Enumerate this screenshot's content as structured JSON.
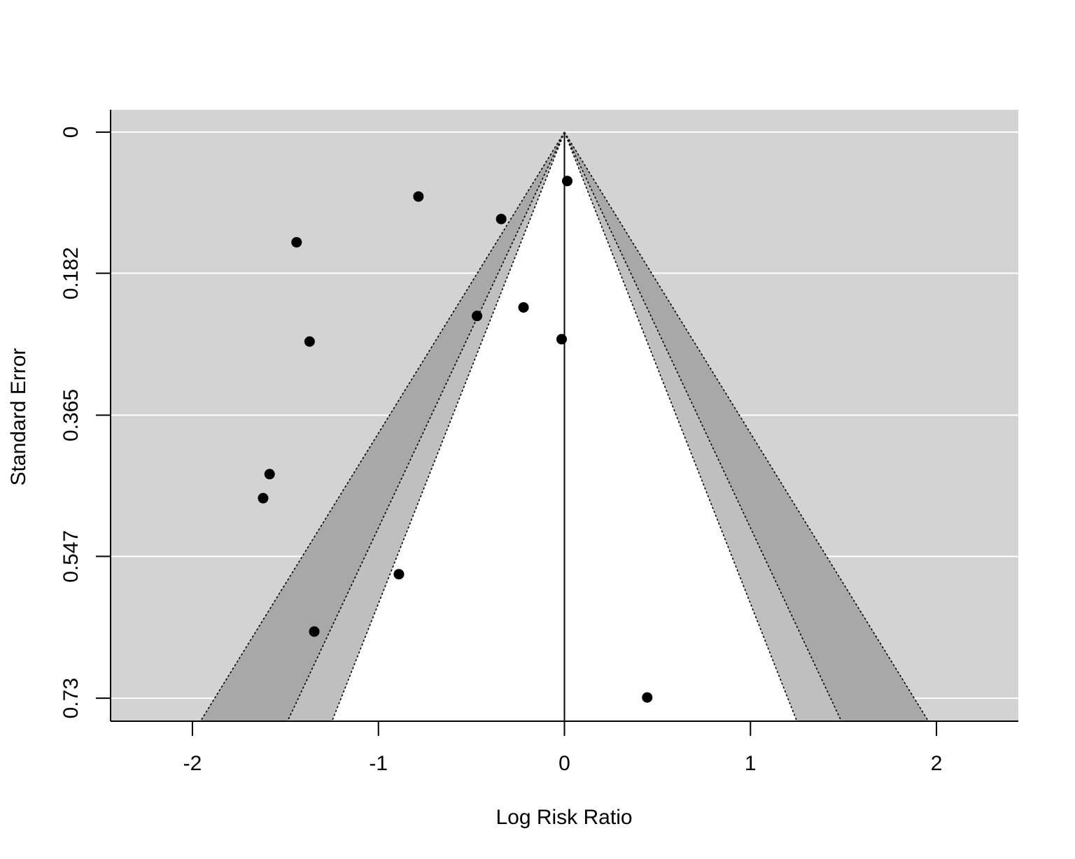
{
  "chart_data": {
    "type": "scatter",
    "subtype": "contour-enhanced funnel plot",
    "xlabel": "Log Risk Ratio",
    "ylabel": "Standard Error",
    "xlim": [
      -2.44,
      2.44
    ],
    "ylim": [
      0.7596,
      -0.0288
    ],
    "y_reversed": true,
    "x_ticks": [
      -2,
      -1,
      0,
      1,
      2
    ],
    "x_tick_labels": [
      "-2",
      "-1",
      "0",
      "1",
      "2"
    ],
    "y_ticks": [
      0,
      0.182,
      0.365,
      0.547,
      0.73
    ],
    "y_tick_labels": [
      "0",
      "0.182",
      "0.365",
      "0.547",
      "0.73"
    ],
    "grid": "horizontal",
    "reference_line_x": 0,
    "contour_levels": [
      {
        "z": 1.645,
        "fill": "#ffffff"
      },
      {
        "z": 1.96,
        "fill": "#bfbfbf"
      },
      {
        "z": 2.576,
        "fill": "#a8a8a8"
      }
    ],
    "background_color": "#d3d3d3",
    "points": [
      {
        "x": 0.015,
        "y": 0.063
      },
      {
        "x": -0.785,
        "y": 0.083
      },
      {
        "x": -0.34,
        "y": 0.112
      },
      {
        "x": -1.44,
        "y": 0.142
      },
      {
        "x": -0.22,
        "y": 0.226
      },
      {
        "x": -0.47,
        "y": 0.237
      },
      {
        "x": -0.015,
        "y": 0.267
      },
      {
        "x": -1.37,
        "y": 0.27
      },
      {
        "x": -1.585,
        "y": 0.441
      },
      {
        "x": -1.62,
        "y": 0.472
      },
      {
        "x": -0.89,
        "y": 0.57
      },
      {
        "x": -1.345,
        "y": 0.644
      },
      {
        "x": 0.445,
        "y": 0.729
      }
    ]
  }
}
